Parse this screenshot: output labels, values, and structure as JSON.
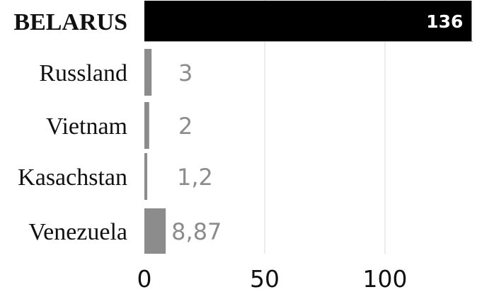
{
  "chart_data": {
    "type": "bar",
    "orientation": "horizontal",
    "categories": [
      "BELARUS",
      "Russland",
      "Vietnam",
      "Kasachstan",
      "Venezuela"
    ],
    "values": [
      136,
      3,
      2,
      1.2,
      8.87
    ],
    "value_labels": [
      "136",
      "3",
      "2",
      "1,2",
      "8,87"
    ],
    "highlight_category": "BELARUS",
    "x_ticks": [
      0,
      50,
      100
    ],
    "xlim": [
      0,
      136
    ],
    "grid": true,
    "colors": {
      "highlight_bar": "#000000",
      "bar": "#8c8c8c",
      "grid": "#d9d9d9",
      "value_label": "#8c8c8c",
      "highlight_value_label": "#ffffff"
    }
  }
}
